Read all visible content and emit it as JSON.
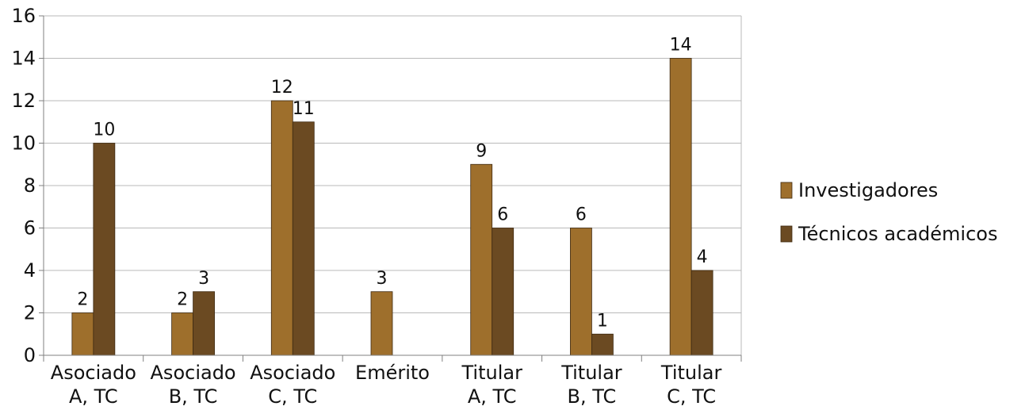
{
  "chart_data": {
    "type": "bar",
    "categories": [
      [
        "Asociado",
        "A, TC"
      ],
      [
        "Asociado",
        "B, TC"
      ],
      [
        "Asociado",
        "C, TC"
      ],
      [
        "Emérito"
      ],
      [
        "Titular",
        "A, TC"
      ],
      [
        "Titular",
        "B, TC"
      ],
      [
        "Titular",
        "C, TC"
      ]
    ],
    "series": [
      {
        "name": "Investigadores",
        "color": "#9e6f2c",
        "values": [
          2,
          2,
          12,
          3,
          9,
          6,
          14
        ]
      },
      {
        "name": "Técnicos académicos",
        "color": "#6b4a22",
        "values": [
          10,
          3,
          11,
          null,
          6,
          1,
          4
        ]
      }
    ],
    "ylim": [
      0,
      16
    ],
    "yticks": [
      0,
      2,
      4,
      6,
      8,
      10,
      12,
      14,
      16
    ],
    "grid": true,
    "legend": "right",
    "data_labels": true
  }
}
